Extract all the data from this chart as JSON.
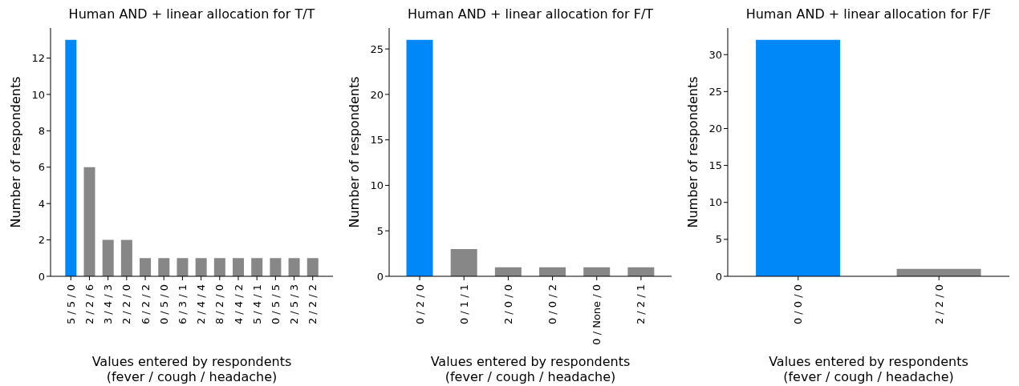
{
  "chart_data": [
    {
      "type": "bar",
      "title": "Human AND + linear allocation for T/T",
      "xlabel": "Values entered by respondents\n(fever / cough / headache)",
      "ylabel": "Number of respondents",
      "categories": [
        "5 / 5 / 0",
        "2 / 2 / 6",
        "3 / 4 / 3",
        "2 / 2 / 0",
        "6 / 2 / 2",
        "0 / 5 / 0",
        "6 / 3 / 1",
        "2 / 4 / 4",
        "8 / 2 / 0",
        "4 / 4 / 2",
        "5 / 4 / 1",
        "0 / 5 / 5",
        "2 / 5 / 3",
        "2 / 2 / 2"
      ],
      "values": [
        13,
        6,
        2,
        2,
        1,
        1,
        1,
        1,
        1,
        1,
        1,
        1,
        1,
        1
      ],
      "colors": [
        "#0088f9",
        "#878787",
        "#878787",
        "#878787",
        "#878787",
        "#878787",
        "#878787",
        "#878787",
        "#878787",
        "#878787",
        "#878787",
        "#878787",
        "#878787",
        "#878787"
      ],
      "ylim": [
        0,
        13.65
      ],
      "yticks": [
        0,
        2,
        4,
        6,
        8,
        10,
        12
      ]
    },
    {
      "type": "bar",
      "title": "Human AND + linear allocation for F/T",
      "xlabel": "Values entered by respondents\n(fever / cough / headache)",
      "ylabel": "Number of respondents",
      "categories": [
        "0 / 2 / 0",
        "0 / 1 / 1",
        "2 / 0 / 0",
        "0 / 0 / 2",
        "0 / None / 0",
        "2 / 2 / 1"
      ],
      "values": [
        26,
        3,
        1,
        1,
        1,
        1
      ],
      "colors": [
        "#0088f9",
        "#878787",
        "#878787",
        "#878787",
        "#878787",
        "#878787"
      ],
      "ylim": [
        0,
        27.3
      ],
      "yticks": [
        0,
        5,
        10,
        15,
        20,
        25
      ]
    },
    {
      "type": "bar",
      "title": "Human AND + linear allocation for F/F",
      "xlabel": "Values entered by respondents\n(fever / cough / headache)",
      "ylabel": "Number of respondents",
      "categories": [
        "0 / 0 / 0",
        "2 / 2 / 0"
      ],
      "values": [
        32,
        1
      ],
      "colors": [
        "#0088f9",
        "#878787"
      ],
      "ylim": [
        0,
        33.6
      ],
      "yticks": [
        0,
        5,
        10,
        15,
        20,
        25,
        30
      ]
    }
  ]
}
